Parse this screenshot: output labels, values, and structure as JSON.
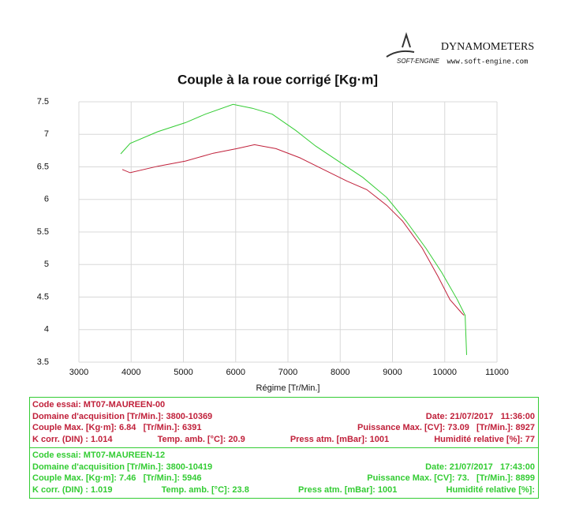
{
  "chart_data": {
    "type": "line",
    "title": "Couple à la roue corrigé [Kg·m]",
    "x_label": "Régime [Tr/Min.]",
    "xlim": [
      3000,
      11000
    ],
    "xticks": [
      3000,
      4000,
      5000,
      6000,
      7000,
      8000,
      9000,
      10000,
      11000
    ],
    "ylim": [
      3.5,
      7.5
    ],
    "yticks": [
      3.5,
      4,
      4.5,
      5,
      5.5,
      6,
      6.5,
      7,
      7.5
    ],
    "grid": true,
    "series": [
      {
        "color": "#c0203a",
        "x": [
          3830,
          3980,
          4510,
          5040,
          5570,
          6020,
          6360,
          6770,
          7230,
          7680,
          8130,
          8510,
          8890,
          9190,
          9570,
          9870,
          10100,
          10330,
          10369
        ],
        "values": [
          6.46,
          6.41,
          6.51,
          6.59,
          6.71,
          6.78,
          6.84,
          6.78,
          6.64,
          6.46,
          6.28,
          6.15,
          5.91,
          5.67,
          5.25,
          4.82,
          4.46,
          4.25,
          4.22
        ]
      },
      {
        "color": "#33cc33",
        "x": [
          3800,
          3980,
          4510,
          5040,
          5420,
          5950,
          6320,
          6700,
          7150,
          7530,
          7980,
          8430,
          8890,
          9260,
          9640,
          9940,
          10240,
          10390,
          10419
        ],
        "values": [
          6.7,
          6.86,
          7.04,
          7.18,
          7.31,
          7.46,
          7.4,
          7.31,
          7.06,
          6.82,
          6.58,
          6.34,
          6.03,
          5.67,
          5.25,
          4.88,
          4.46,
          4.22,
          3.61
        ]
      }
    ]
  },
  "logo": {
    "brand": "DYNAMOMETERS",
    "url": "www.soft-engine.com",
    "mark": "SOFT-ENGINE"
  },
  "info_panels": [
    {
      "color": "#c0203a",
      "rows": [
        [
          "Code essai: MT07-MAUREEN-00"
        ],
        [
          "Domaine d'acquisition [Tr/Min.]: 3800-10369",
          "Date: 21/07/2017   11:36:00"
        ],
        [
          "Couple Max. [Kg·m]: 6.84   [Tr/Min.]: 6391",
          "Puissance Max. [CV]: 73.09   [Tr/Min.]: 8927"
        ],
        [
          "K corr. (DIN) : 1.014",
          "Temp. amb. [°C]: 20.9",
          "Press atm. [mBar]: 1001",
          "Humidité relative [%]: 77"
        ]
      ]
    },
    {
      "color": "#33cc33",
      "rows": [
        [
          "Code essai: MT07-MAUREEN-12"
        ],
        [
          "Domaine d'acquisition [Tr/Min.]: 3800-10419",
          "Date: 21/07/2017   17:43:00"
        ],
        [
          "Couple Max. [Kg·m]: 7.46   [Tr/Min.]: 5946",
          "Puissance Max. [CV]: 73.   [Tr/Min.]: 8899"
        ],
        [
          "K corr. (DIN) : 1.019",
          "Temp. amb. [°C]: 23.8",
          "Press atm. [mBar]: 1001",
          "Humidité relative [%]:"
        ]
      ]
    }
  ]
}
